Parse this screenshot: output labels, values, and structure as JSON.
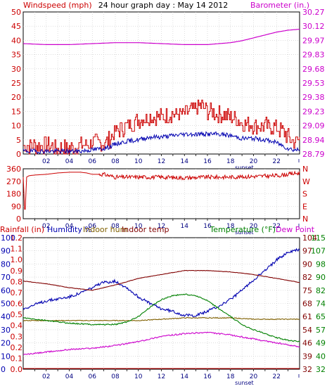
{
  "colors": {
    "wind_red": "#cc0000",
    "wind_blue": "#0000b0",
    "baro_magenta": "#cc00cc",
    "humidity_blue": "#0000b0",
    "indoor_hum": "#806000",
    "indoor_temp": "#800000",
    "temperature_green": "#008000",
    "dew_magenta": "#cc00cc",
    "rain_red": "#cc0000"
  },
  "chart_data": [
    {
      "type": "line",
      "title": "24 hour graph day : May 14 2012",
      "left_label": "Windspeed (mph)",
      "right_label": "Barometer (in.)",
      "left_ticks": [
        "0",
        "5",
        "10",
        "15",
        "20",
        "25",
        "30",
        "35",
        "40",
        "45",
        "50"
      ],
      "right_ticks": [
        "28.79",
        "28.94",
        "29.09",
        "29.23",
        "29.38",
        "29.53",
        "29.68",
        "29.83",
        "29.97",
        "30.12",
        "30.27"
      ],
      "x_ticks": [
        "02",
        "04",
        "06",
        "08",
        "10",
        "12",
        "14",
        "16",
        "18",
        "20",
        "22"
      ],
      "x_annotation": "sunset",
      "ylim_left": [
        0,
        50
      ],
      "ylim_right": [
        28.79,
        30.27
      ],
      "series": [
        {
          "key": "gust",
          "axis": "left",
          "x": [
            0,
            1,
            2,
            3,
            4,
            5,
            6,
            7,
            7.5,
            8,
            9,
            10,
            11,
            12,
            13,
            14,
            15,
            15.5,
            16,
            17,
            18,
            19,
            20,
            21,
            22,
            22.5,
            23,
            23.5,
            24
          ],
          "y": [
            3,
            3,
            3,
            2,
            2,
            3,
            4,
            4,
            5,
            8,
            10,
            12,
            13,
            13,
            14,
            14,
            16,
            17,
            15,
            14,
            13,
            11,
            10,
            10,
            9,
            8,
            6,
            4,
            5
          ]
        },
        {
          "key": "wind",
          "axis": "left",
          "x": [
            0,
            1,
            2,
            3,
            4,
            5,
            6,
            7,
            7.5,
            8,
            9,
            10,
            11,
            12,
            13,
            14,
            15,
            16,
            17,
            18,
            19,
            20,
            21,
            22,
            22.5,
            23,
            23.5,
            24
          ],
          "y": [
            1,
            1,
            1,
            1,
            1,
            1,
            1.5,
            2,
            2.5,
            3.5,
            4.5,
            5,
            6,
            6,
            6.5,
            7,
            7,
            7,
            7,
            6.5,
            5.5,
            5.5,
            5,
            4,
            3,
            2,
            1.5,
            1.5
          ]
        },
        {
          "key": "barometer",
          "axis": "right",
          "x": [
            0,
            2,
            4,
            6,
            8,
            10,
            12,
            14,
            16,
            17,
            18,
            19,
            20,
            21,
            22,
            23,
            24
          ],
          "y": [
            29.94,
            29.93,
            29.93,
            29.94,
            29.95,
            29.95,
            29.94,
            29.93,
            29.93,
            29.94,
            29.95,
            29.97,
            30.0,
            30.03,
            30.06,
            30.08,
            30.09
          ]
        }
      ]
    },
    {
      "type": "line",
      "left_ticks": [
        "0",
        "90",
        "180",
        "270",
        "360"
      ],
      "right_ticks": [
        "N",
        "E",
        "S",
        "W",
        "N"
      ],
      "x_ticks": [
        "02",
        "04",
        "06",
        "08",
        "10",
        "12",
        "14",
        "16",
        "18",
        "20",
        "22"
      ],
      "x_annotation": "sunset",
      "ylim": [
        0,
        360
      ],
      "series": [
        {
          "key": "direction",
          "x": [
            0,
            0.15,
            0.3,
            0.5,
            1,
            2,
            3,
            4,
            5,
            5.5,
            6,
            7,
            8,
            9,
            10,
            12,
            14,
            16,
            18,
            20,
            22,
            23,
            24
          ],
          "y": [
            300,
            10,
            300,
            310,
            315,
            320,
            330,
            335,
            335,
            330,
            320,
            320,
            300,
            300,
            300,
            300,
            295,
            300,
            300,
            305,
            310,
            320,
            330
          ]
        }
      ]
    },
    {
      "type": "line",
      "left_labels": [
        "Rainfall (in)",
        "Humidity %",
        "Indoor hum",
        "Indoor temp"
      ],
      "right_labels": [
        "Temperature (°F)",
        "Dew Point"
      ],
      "left_ticks_rain": [
        "0.0",
        "0.1",
        "0.2",
        "0.3",
        "0.4",
        "0.5",
        "0.6",
        "0.7",
        "0.8",
        "0.9",
        "1.0",
        "1.1",
        "1.2"
      ],
      "left_ticks_hum": [
        "0",
        "10",
        "20",
        "30",
        "40",
        "50",
        "60",
        "70",
        "80",
        "90",
        "100"
      ],
      "right_ticks_a": [
        "32",
        "39",
        "46",
        "54",
        "61",
        "68",
        "75",
        "82",
        "90",
        "97",
        "104"
      ],
      "right_ticks_b": [
        "32",
        "40",
        "49",
        "57",
        "65",
        "74",
        "82",
        "90",
        "98",
        "107",
        "115"
      ],
      "x_ticks": [
        "02",
        "04",
        "06",
        "08",
        "10",
        "12",
        "14",
        "16",
        "18",
        "20",
        "22"
      ],
      "x_annotation": "sunset",
      "ylim_hum": [
        0,
        100
      ],
      "series": [
        {
          "key": "humidity",
          "x": [
            0,
            2,
            4,
            5,
            6,
            7,
            8,
            9,
            10,
            11,
            12,
            13,
            14,
            15,
            16,
            17,
            18,
            19,
            20,
            21,
            22,
            23,
            24
          ],
          "y": [
            46,
            52,
            55,
            58,
            62,
            66,
            67,
            62,
            55,
            50,
            46,
            44,
            41,
            41,
            44,
            48,
            53,
            60,
            68,
            75,
            83,
            89,
            91
          ]
        },
        {
          "key": "indoor_hum",
          "x": [
            0,
            4,
            8,
            10,
            12,
            14,
            16,
            18,
            20,
            22,
            24
          ],
          "y": [
            37,
            37,
            37,
            37,
            38,
            39,
            39,
            39,
            38,
            38,
            38
          ]
        },
        {
          "key": "indoor_temp",
          "x": [
            0,
            2,
            4,
            6,
            8,
            10,
            12,
            14,
            16,
            18,
            20,
            22,
            24
          ],
          "y": [
            67,
            65,
            62,
            60,
            64,
            69,
            72,
            75,
            75,
            74,
            72,
            69,
            66
          ]
        },
        {
          "key": "temperature",
          "x": [
            0,
            2,
            4,
            6,
            8,
            9,
            10,
            11,
            12,
            13,
            14,
            15,
            16,
            17,
            18,
            19,
            20,
            21,
            22,
            23,
            24
          ],
          "y": [
            39,
            37,
            35,
            34,
            34,
            36,
            40,
            47,
            53,
            56,
            57,
            56,
            52,
            46,
            40,
            34,
            30,
            27,
            24,
            22,
            21
          ]
        },
        {
          "key": "dew_point",
          "x": [
            0,
            2,
            4,
            6,
            8,
            10,
            12,
            14,
            16,
            18,
            20,
            22,
            24
          ],
          "y": [
            11,
            13,
            15,
            16,
            18,
            21,
            25,
            27,
            28,
            26,
            23,
            20,
            17
          ]
        },
        {
          "key": "rainfall",
          "x": [
            0,
            24
          ],
          "y": [
            0.0,
            0.0
          ]
        }
      ]
    }
  ]
}
